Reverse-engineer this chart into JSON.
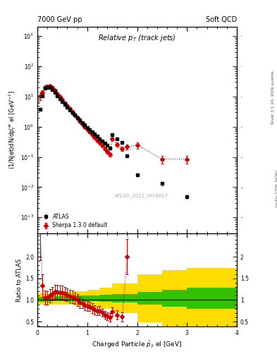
{
  "title_left": "7000 GeV pp",
  "title_right": "Soft QCD",
  "plot_title": "Relative p$_{T}$ (track jets)",
  "xlabel": "Charged Particle $\\hat{p}_{T}$ el [GeV]",
  "ylabel_main": "(1/Njet)dN/dp$^{rel}_{T}$ el [GeV$^{-1}$]",
  "ylabel_ratio": "Ratio to ATLAS",
  "watermark": "ATLAS_2011_I919017",
  "right_label_top": "Rivet 3.1.10, 400k events",
  "right_label_bot": "[arXiv:1306.3436]",
  "xlim": [
    0,
    4
  ],
  "ylim_main": [
    0.0003,
    2000.0
  ],
  "ylim_ratio": [
    0.38,
    2.55
  ],
  "atlas_x": [
    0.05,
    0.1,
    0.15,
    0.2,
    0.25,
    0.3,
    0.35,
    0.4,
    0.45,
    0.5,
    0.55,
    0.6,
    0.65,
    0.7,
    0.75,
    0.8,
    0.85,
    0.9,
    0.95,
    1.0,
    1.05,
    1.1,
    1.15,
    1.2,
    1.25,
    1.3,
    1.35,
    1.4,
    1.45,
    1.5,
    1.6,
    1.7,
    1.8,
    2.0,
    2.5,
    3.0,
    3.5,
    4.0
  ],
  "atlas_y": [
    3.8,
    10.5,
    19.0,
    20.5,
    20.0,
    17.5,
    13.5,
    10.5,
    8.5,
    6.8,
    5.4,
    4.4,
    3.6,
    2.9,
    2.4,
    1.95,
    1.65,
    1.35,
    1.15,
    0.95,
    0.8,
    0.68,
    0.57,
    0.48,
    0.4,
    0.34,
    0.29,
    0.24,
    0.2,
    0.55,
    0.4,
    0.31,
    0.11,
    0.026,
    0.013,
    0.0048,
    null,
    null
  ],
  "atlas_yerr": [
    0.4,
    0.8,
    1.0,
    1.0,
    1.0,
    0.8,
    0.6,
    0.5,
    0.4,
    0.35,
    0.28,
    0.22,
    0.18,
    0.15,
    0.12,
    0.1,
    0.08,
    0.07,
    0.06,
    0.05,
    0.04,
    0.035,
    0.03,
    0.025,
    0.02,
    0.018,
    0.015,
    0.012,
    0.01,
    0.03,
    0.025,
    0.02,
    0.01,
    0.003,
    0.002,
    0.0008,
    null,
    null
  ],
  "sherpa_x": [
    0.05,
    0.1,
    0.15,
    0.2,
    0.25,
    0.3,
    0.35,
    0.4,
    0.45,
    0.5,
    0.55,
    0.6,
    0.65,
    0.7,
    0.75,
    0.8,
    0.85,
    0.9,
    0.95,
    1.0,
    1.05,
    1.1,
    1.15,
    1.2,
    1.25,
    1.3,
    1.35,
    1.4,
    1.45,
    1.5,
    1.6,
    1.7,
    1.8,
    2.0,
    2.5,
    3.0
  ],
  "sherpa_y": [
    10.5,
    14.0,
    20.0,
    21.5,
    22.0,
    20.0,
    16.0,
    12.5,
    10.0,
    8.0,
    6.2,
    4.9,
    3.9,
    3.1,
    2.5,
    1.95,
    1.55,
    1.25,
    1.0,
    0.82,
    0.68,
    0.55,
    0.44,
    0.36,
    0.3,
    0.24,
    0.19,
    0.15,
    0.12,
    0.4,
    0.26,
    0.19,
    0.22,
    0.25,
    0.085,
    0.085
  ],
  "sherpa_yerr": [
    3.0,
    2.5,
    3.0,
    3.0,
    3.0,
    2.5,
    2.0,
    1.5,
    1.2,
    1.0,
    0.8,
    0.6,
    0.5,
    0.4,
    0.3,
    0.25,
    0.2,
    0.15,
    0.12,
    0.1,
    0.08,
    0.07,
    0.055,
    0.045,
    0.038,
    0.03,
    0.025,
    0.02,
    0.018,
    0.05,
    0.04,
    0.03,
    0.04,
    0.06,
    0.025,
    0.025
  ],
  "band_edges": [
    0.0,
    0.25,
    0.5,
    0.75,
    1.0,
    1.25,
    1.5,
    2.0,
    2.5,
    3.0,
    4.0
  ],
  "band_center": [
    1.02,
    1.03,
    1.04,
    1.04,
    1.04,
    1.04,
    1.04,
    1.04,
    1.04,
    1.04
  ],
  "band_green": [
    0.06,
    0.06,
    0.065,
    0.065,
    0.07,
    0.08,
    0.1,
    0.15,
    0.2,
    0.25
  ],
  "band_yellow": [
    0.13,
    0.14,
    0.15,
    0.17,
    0.2,
    0.25,
    0.35,
    0.55,
    0.65,
    0.7
  ],
  "color_atlas": "#000000",
  "color_sherpa": "#cc0000",
  "color_green": "#00bb00",
  "color_yellow": "#ffdd00"
}
